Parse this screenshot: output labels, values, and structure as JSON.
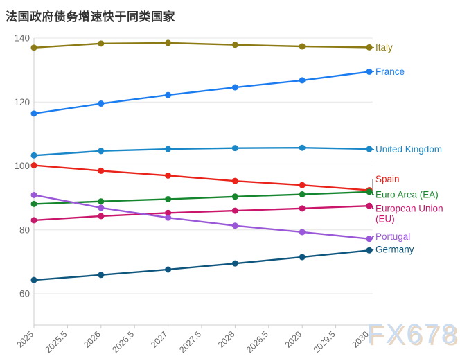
{
  "header": {
    "title": "法国政府债务增速快于同类国家",
    "title_color": "#333333"
  },
  "watermark": {
    "text": "FX678",
    "color": "#ccddf1",
    "shadow_color": "#e9d6c1"
  },
  "axes": {
    "y_tick_labels": [
      "60",
      "80",
      "100",
      "120",
      "140"
    ],
    "x_tick_labels": [
      "2025",
      "2025.5",
      "2026",
      "2026.5",
      "2027",
      "2027.5",
      "2028",
      "2028.5",
      "2029",
      "2029.5",
      "2030"
    ],
    "tick_label_color": "#666666",
    "grid_color": "#e6e6e6",
    "axis_color": "#cccccc",
    "leader_line_color": "#aaaaaa"
  },
  "chart_data": {
    "type": "line",
    "title": "法国政府债务增速快于同类国家",
    "x": [
      2025,
      2026,
      2027,
      2028,
      2029,
      2030
    ],
    "xlim": [
      2025,
      2030
    ],
    "ylim": [
      60,
      140
    ],
    "y_ticks": [
      60,
      80,
      100,
      120,
      140
    ],
    "x_tick_step": 0.5,
    "grid": "horizontal",
    "legend_position": "right-edge-labels",
    "markers": true,
    "series": [
      {
        "name": "Italy",
        "color": "#8c7a15",
        "values": [
          137.0,
          138.3,
          138.5,
          137.9,
          137.4,
          137.1
        ],
        "label_lines": [
          "Italy"
        ]
      },
      {
        "name": "France",
        "color": "#1b7cf0",
        "values": [
          116.4,
          119.5,
          122.2,
          124.6,
          126.8,
          129.5
        ],
        "label_lines": [
          "France"
        ]
      },
      {
        "name": "United Kingdom",
        "color": "#1987c8",
        "values": [
          103.3,
          104.7,
          105.3,
          105.6,
          105.7,
          105.3
        ],
        "label_lines": [
          "United Kingdom"
        ]
      },
      {
        "name": "Spain",
        "color": "#e9221a",
        "values": [
          100.2,
          98.5,
          97.0,
          95.3,
          94.0,
          92.4
        ],
        "label_lines": [
          "Spain"
        ]
      },
      {
        "name": "Euro Area (EA)",
        "color": "#15862e",
        "values": [
          88.1,
          88.9,
          89.6,
          90.4,
          91.1,
          91.9
        ],
        "label_lines": [
          "Euro Area (EA)"
        ]
      },
      {
        "name": "European Union (EU)",
        "color": "#c9156a",
        "values": [
          83.0,
          84.3,
          85.3,
          86.0,
          86.7,
          87.5
        ],
        "label_lines": [
          "European Union",
          "(EU)"
        ]
      },
      {
        "name": "Portugal",
        "color": "#9a58d8",
        "values": [
          90.9,
          86.9,
          83.8,
          81.3,
          79.3,
          77.2
        ],
        "label_lines": [
          "Portugal"
        ]
      },
      {
        "name": "Germany",
        "color": "#0e567e",
        "values": [
          64.3,
          65.9,
          67.6,
          69.5,
          71.5,
          73.6
        ],
        "label_lines": [
          "Germany"
        ]
      }
    ]
  }
}
